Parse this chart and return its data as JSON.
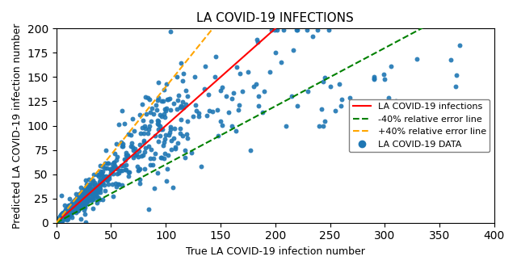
{
  "title": "LA COVID-19 INFECTIONS",
  "xlabel": "True LA COVID-19 infection number",
  "ylabel": "Predicted LA COVID-19 infection number",
  "xlim": [
    0,
    400
  ],
  "ylim": [
    0,
    200
  ],
  "xticks": [
    0,
    50,
    100,
    150,
    200,
    250,
    300,
    350,
    400
  ],
  "yticks": [
    0,
    25,
    50,
    75,
    100,
    125,
    150,
    175,
    200
  ],
  "scatter_color": "#1f77b4",
  "scatter_marker": "o",
  "scatter_size": 18,
  "red_line_color": "red",
  "red_line_slope": 1.0,
  "green_line_color": "green",
  "green_line_slope": 0.6,
  "orange_line_color": "orange",
  "orange_line_slope": 1.4,
  "legend_labels": [
    "LA COVID-19 infections",
    "-40% relative error line",
    "+40% relative error line",
    "LA COVID-19 DATA"
  ],
  "random_seed": 42,
  "title_fontsize": 11,
  "axis_fontsize": 9,
  "legend_fontsize": 8
}
